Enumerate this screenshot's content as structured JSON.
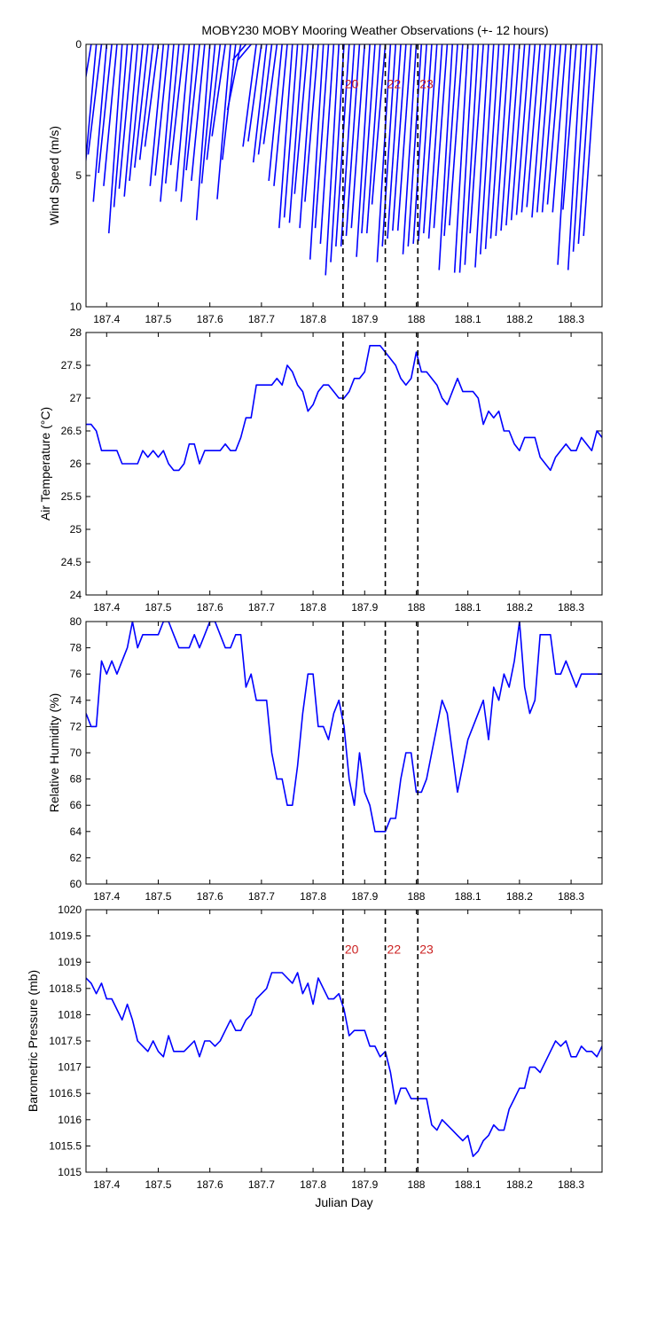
{
  "figure": {
    "title": "MOBY230 MOBY Mooring Weather Observations (+- 12 hours)",
    "xlabel": "Julian Day",
    "colors": {
      "series": "#0000ff",
      "axes": "#000000",
      "markers": "#cc2222",
      "background": "#ffffff"
    }
  },
  "chart_data": [
    {
      "type": "line",
      "title": "MOBY230 MOBY Mooring Weather Observations (+- 12 hours)",
      "ylabel": "Wind Speed (m/s)",
      "xlabel": "",
      "xlim": [
        187.36,
        188.36
      ],
      "ylim": [
        0,
        10
      ],
      "y_reversed": true,
      "xticks": [
        187.4,
        187.5,
        187.6,
        187.7,
        187.8,
        187.9,
        188,
        188.1,
        188.2,
        188.3
      ],
      "yticks": [
        0,
        5,
        10
      ],
      "vlines": [
        187.858,
        187.94,
        188.003
      ],
      "markers": [
        {
          "x": 187.858,
          "label": "20",
          "y": 1.5
        },
        {
          "x": 187.94,
          "label": "22",
          "y": 1.5
        },
        {
          "x": 188.003,
          "label": "23",
          "y": 1.5
        }
      ],
      "series": [
        {
          "style": "stick",
          "x": [
            187.37,
            187.38,
            187.39,
            187.4,
            187.41,
            187.42,
            187.43,
            187.44,
            187.45,
            187.46,
            187.47,
            187.48,
            187.49,
            187.5,
            187.51,
            187.52,
            187.53,
            187.54,
            187.55,
            187.56,
            187.57,
            187.58,
            187.59,
            187.6,
            187.61,
            187.62,
            187.63,
            187.64,
            187.65,
            187.66,
            187.67,
            187.68,
            187.69,
            187.7,
            187.71,
            187.72,
            187.73,
            187.74,
            187.75,
            187.76,
            187.77,
            187.78,
            187.79,
            187.8,
            187.81,
            187.82,
            187.83,
            187.84,
            187.85,
            187.86,
            187.87,
            187.88,
            187.89,
            187.9,
            187.91,
            187.92,
            187.93,
            187.94,
            187.95,
            187.96,
            187.97,
            187.98,
            187.99,
            188.0,
            188.01,
            188.02,
            188.03,
            188.04,
            188.05,
            188.06,
            188.07,
            188.08,
            188.09,
            188.1,
            188.11,
            188.12,
            188.13,
            188.14,
            188.15,
            188.16,
            188.17,
            188.18,
            188.19,
            188.2,
            188.21,
            188.22,
            188.23,
            188.24,
            188.25,
            188.26,
            188.27,
            188.28,
            188.29,
            188.3,
            188.31,
            188.32,
            188.33,
            188.34,
            188.35
          ],
          "values": [
            3.1,
            5.6,
            4.2,
            6.0,
            4.9,
            5.4,
            7.2,
            6.2,
            5.5,
            5.8,
            5.2,
            4.7,
            4.4,
            3.9,
            5.4,
            5.0,
            6.0,
            5.3,
            4.6,
            5.6,
            6.0,
            4.8,
            5.2,
            6.7,
            5.3,
            4.4,
            3.5,
            5.9,
            4.4,
            2.5,
            0.6,
            0.6,
            3.9,
            3.7,
            4.5,
            4.2,
            3.8,
            5.2,
            5.4,
            7.0,
            6.6,
            6.8,
            5.7,
            7.0,
            6.0,
            8.2,
            7.0,
            7.6,
            8.8,
            8.3,
            7.7,
            7.7,
            7.3,
            7.0,
            8.1,
            7.2,
            7.2,
            6.1,
            8.3,
            7.7,
            7.4,
            7.1,
            7.1,
            8.0,
            7.7,
            7.6,
            7.5,
            7.2,
            7.4,
            7.0,
            8.6,
            7.3,
            6.9,
            8.7,
            8.7,
            8.4,
            7.2,
            8.5,
            8.0,
            7.8,
            7.4,
            7.3,
            7.1,
            6.9,
            6.7,
            6.5,
            6.4,
            6.2,
            6.6,
            6.4,
            6.4,
            6.1,
            6.4,
            8.4,
            6.3,
            8.6,
            7.9,
            7.6,
            7.3
          ]
        }
      ]
    },
    {
      "type": "line",
      "title": "",
      "ylabel": "Air Temperature (°C)",
      "xlabel": "",
      "xlim": [
        187.36,
        188.36
      ],
      "ylim": [
        24,
        28
      ],
      "xticks": [
        187.4,
        187.5,
        187.6,
        187.7,
        187.8,
        187.9,
        188,
        188.1,
        188.2,
        188.3
      ],
      "yticks": [
        24,
        24.5,
        25,
        25.5,
        26,
        26.5,
        27,
        27.5,
        28
      ],
      "vlines": [
        187.858,
        187.94,
        188.003
      ],
      "markers": [],
      "series": [
        {
          "style": "line",
          "x": [
            187.36,
            187.37,
            187.38,
            187.39,
            187.4,
            187.41,
            187.42,
            187.43,
            187.44,
            187.45,
            187.46,
            187.47,
            187.48,
            187.49,
            187.5,
            187.51,
            187.52,
            187.53,
            187.54,
            187.55,
            187.56,
            187.57,
            187.58,
            187.59,
            187.6,
            187.61,
            187.62,
            187.63,
            187.64,
            187.65,
            187.66,
            187.67,
            187.68,
            187.69,
            187.7,
            187.71,
            187.72,
            187.73,
            187.74,
            187.75,
            187.76,
            187.77,
            187.78,
            187.79,
            187.8,
            187.81,
            187.82,
            187.83,
            187.84,
            187.85,
            187.86,
            187.87,
            187.88,
            187.89,
            187.9,
            187.91,
            187.92,
            187.93,
            187.94,
            187.95,
            187.96,
            187.97,
            187.98,
            187.99,
            188.0,
            188.01,
            188.02,
            188.03,
            188.04,
            188.05,
            188.06,
            188.07,
            188.08,
            188.09,
            188.1,
            188.11,
            188.12,
            188.13,
            188.14,
            188.15,
            188.16,
            188.17,
            188.18,
            188.19,
            188.2,
            188.21,
            188.22,
            188.23,
            188.24,
            188.25,
            188.26,
            188.27,
            188.28,
            188.29,
            188.3,
            188.31,
            188.32,
            188.33,
            188.34,
            188.35,
            188.36
          ],
          "values": [
            26.6,
            26.6,
            26.5,
            26.2,
            26.2,
            26.2,
            26.2,
            26.0,
            26.0,
            26.0,
            26.0,
            26.2,
            26.1,
            26.2,
            26.1,
            26.2,
            26.0,
            25.9,
            25.9,
            26.0,
            26.3,
            26.3,
            26.0,
            26.2,
            26.2,
            26.2,
            26.2,
            26.3,
            26.2,
            26.2,
            26.4,
            26.7,
            26.7,
            27.2,
            27.2,
            27.2,
            27.2,
            27.3,
            27.2,
            27.5,
            27.4,
            27.2,
            27.1,
            26.8,
            26.9,
            27.1,
            27.2,
            27.2,
            27.1,
            27.0,
            27.0,
            27.1,
            27.3,
            27.3,
            27.4,
            27.8,
            27.8,
            27.8,
            27.7,
            27.6,
            27.5,
            27.3,
            27.2,
            27.3,
            27.7,
            27.4,
            27.4,
            27.3,
            27.2,
            27.0,
            26.9,
            27.1,
            27.3,
            27.1,
            27.1,
            27.1,
            27.0,
            26.6,
            26.8,
            26.7,
            26.8,
            26.5,
            26.5,
            26.3,
            26.2,
            26.4,
            26.4,
            26.4,
            26.1,
            26.0,
            25.9,
            26.1,
            26.2,
            26.3,
            26.2,
            26.2,
            26.4,
            26.3,
            26.2,
            26.5,
            26.4
          ]
        }
      ]
    },
    {
      "type": "line",
      "title": "",
      "ylabel": "Relative Humidity (%)",
      "xlabel": "",
      "xlim": [
        187.36,
        188.36
      ],
      "ylim": [
        60,
        80
      ],
      "xticks": [
        187.4,
        187.5,
        187.6,
        187.7,
        187.8,
        187.9,
        188,
        188.1,
        188.2,
        188.3
      ],
      "yticks": [
        60,
        62,
        64,
        66,
        68,
        70,
        72,
        74,
        76,
        78,
        80
      ],
      "vlines": [
        187.858,
        187.94,
        188.003
      ],
      "markers": [],
      "series": [
        {
          "style": "line",
          "x": [
            187.36,
            187.37,
            187.38,
            187.39,
            187.4,
            187.41,
            187.42,
            187.43,
            187.44,
            187.45,
            187.46,
            187.47,
            187.48,
            187.49,
            187.5,
            187.51,
            187.52,
            187.53,
            187.54,
            187.55,
            187.56,
            187.57,
            187.58,
            187.59,
            187.6,
            187.61,
            187.62,
            187.63,
            187.64,
            187.65,
            187.66,
            187.67,
            187.68,
            187.69,
            187.7,
            187.71,
            187.72,
            187.73,
            187.74,
            187.75,
            187.76,
            187.77,
            187.78,
            187.79,
            187.8,
            187.81,
            187.82,
            187.83,
            187.84,
            187.85,
            187.86,
            187.87,
            187.88,
            187.89,
            187.9,
            187.91,
            187.92,
            187.93,
            187.94,
            187.95,
            187.96,
            187.97,
            187.98,
            187.99,
            188.0,
            188.01,
            188.02,
            188.03,
            188.04,
            188.05,
            188.06,
            188.07,
            188.08,
            188.09,
            188.1,
            188.11,
            188.12,
            188.13,
            188.14,
            188.15,
            188.16,
            188.17,
            188.18,
            188.19,
            188.2,
            188.21,
            188.22,
            188.23,
            188.24,
            188.25,
            188.26,
            188.27,
            188.28,
            188.29,
            188.3,
            188.31,
            188.32,
            188.33,
            188.34,
            188.35,
            188.36
          ],
          "values": [
            73,
            72,
            72,
            77,
            76,
            77,
            76,
            77,
            78,
            80,
            78,
            79,
            79,
            79,
            79,
            80,
            80,
            79,
            78,
            78,
            78,
            79,
            78,
            79,
            80,
            80,
            79,
            78,
            78,
            79,
            79,
            75,
            76,
            74,
            74,
            74,
            70,
            68,
            68,
            66,
            66,
            69,
            73,
            76,
            76,
            72,
            72,
            71,
            73,
            74,
            72,
            68,
            66,
            70,
            67,
            66,
            64,
            64,
            64,
            65,
            65,
            68,
            70,
            70,
            67,
            67,
            68,
            70,
            72,
            74,
            73,
            70,
            67,
            69,
            71,
            72,
            73,
            74,
            71,
            75,
            74,
            76,
            75,
            77,
            80,
            75,
            73,
            74,
            79,
            79,
            79,
            76,
            76,
            77,
            76,
            75,
            76,
            76,
            76,
            76,
            76
          ]
        }
      ]
    },
    {
      "type": "line",
      "title": "",
      "ylabel": "Barometric Pressure (mb)",
      "xlabel": "Julian Day",
      "xlim": [
        187.36,
        188.36
      ],
      "ylim": [
        1015,
        1020
      ],
      "xticks": [
        187.4,
        187.5,
        187.6,
        187.7,
        187.8,
        187.9,
        188,
        188.1,
        188.2,
        188.3
      ],
      "yticks": [
        1015,
        1015.5,
        1016,
        1016.5,
        1017,
        1017.5,
        1018,
        1018.5,
        1019,
        1019.5,
        1020
      ],
      "vlines": [
        187.858,
        187.94,
        188.003
      ],
      "markers": [
        {
          "x": 187.858,
          "label": "20",
          "y": 1019.25
        },
        {
          "x": 187.94,
          "label": "22",
          "y": 1019.25
        },
        {
          "x": 188.003,
          "label": "23",
          "y": 1019.25
        }
      ],
      "series": [
        {
          "style": "line",
          "x": [
            187.36,
            187.37,
            187.38,
            187.39,
            187.4,
            187.41,
            187.42,
            187.43,
            187.44,
            187.45,
            187.46,
            187.47,
            187.48,
            187.49,
            187.5,
            187.51,
            187.52,
            187.53,
            187.54,
            187.55,
            187.56,
            187.57,
            187.58,
            187.59,
            187.6,
            187.61,
            187.62,
            187.63,
            187.64,
            187.65,
            187.66,
            187.67,
            187.68,
            187.69,
            187.7,
            187.71,
            187.72,
            187.73,
            187.74,
            187.75,
            187.76,
            187.77,
            187.78,
            187.79,
            187.8,
            187.81,
            187.82,
            187.83,
            187.84,
            187.85,
            187.86,
            187.87,
            187.88,
            187.89,
            187.9,
            187.91,
            187.92,
            187.93,
            187.94,
            187.95,
            187.96,
            187.97,
            187.98,
            187.99,
            188.0,
            188.01,
            188.02,
            188.03,
            188.04,
            188.05,
            188.06,
            188.07,
            188.08,
            188.09,
            188.1,
            188.11,
            188.12,
            188.13,
            188.14,
            188.15,
            188.16,
            188.17,
            188.18,
            188.19,
            188.2,
            188.21,
            188.22,
            188.23,
            188.24,
            188.25,
            188.26,
            188.27,
            188.28,
            188.29,
            188.3,
            188.31,
            188.32,
            188.33,
            188.34,
            188.35,
            188.36
          ],
          "values": [
            1018.7,
            1018.6,
            1018.4,
            1018.6,
            1018.3,
            1018.3,
            1018.1,
            1017.9,
            1018.2,
            1017.9,
            1017.5,
            1017.4,
            1017.3,
            1017.5,
            1017.3,
            1017.2,
            1017.6,
            1017.3,
            1017.3,
            1017.3,
            1017.4,
            1017.5,
            1017.2,
            1017.5,
            1017.5,
            1017.4,
            1017.5,
            1017.7,
            1017.9,
            1017.7,
            1017.7,
            1017.9,
            1018.0,
            1018.3,
            1018.4,
            1018.5,
            1018.8,
            1018.8,
            1018.8,
            1018.7,
            1018.6,
            1018.8,
            1018.4,
            1018.6,
            1018.2,
            1018.7,
            1018.5,
            1018.3,
            1018.3,
            1018.4,
            1018.1,
            1017.6,
            1017.7,
            1017.7,
            1017.7,
            1017.4,
            1017.4,
            1017.2,
            1017.3,
            1016.9,
            1016.3,
            1016.6,
            1016.6,
            1016.4,
            1016.4,
            1016.4,
            1016.4,
            1015.9,
            1015.8,
            1016.0,
            1015.9,
            1015.8,
            1015.7,
            1015.6,
            1015.7,
            1015.3,
            1015.4,
            1015.6,
            1015.7,
            1015.9,
            1015.8,
            1015.8,
            1016.2,
            1016.4,
            1016.6,
            1016.6,
            1017.0,
            1017.0,
            1016.9,
            1017.1,
            1017.3,
            1017.5,
            1017.4,
            1017.5,
            1017.2,
            1017.2,
            1017.4,
            1017.3,
            1017.3,
            1017.2,
            1017.4
          ]
        }
      ]
    }
  ]
}
